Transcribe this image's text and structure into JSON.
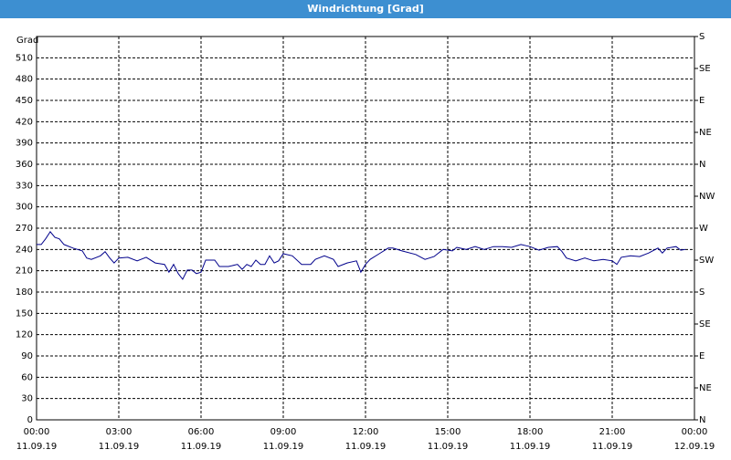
{
  "chart_data": {
    "type": "line",
    "title": "Windrichtung [Grad]",
    "ylabel": "Grad",
    "x": [
      0,
      0.17,
      0.33,
      0.5,
      0.67,
      0.83,
      1,
      1.33,
      1.67,
      1.83,
      2,
      2.33,
      2.5,
      2.67,
      2.83,
      3,
      3.33,
      3.67,
      4,
      4.33,
      4.67,
      4.83,
      5,
      5.17,
      5.33,
      5.5,
      5.67,
      5.83,
      6,
      6.17,
      6.5,
      6.67,
      7,
      7.33,
      7.5,
      7.67,
      7.83,
      8,
      8.17,
      8.33,
      8.5,
      8.67,
      8.83,
      9,
      9.33,
      9.67,
      10,
      10.17,
      10.5,
      10.83,
      11,
      11.33,
      11.67,
      11.83,
      12,
      12.17,
      12.5,
      12.83,
      13,
      13.33,
      13.83,
      14.17,
      14.5,
      14.83,
      15.17,
      15.33,
      15.67,
      16,
      16.33,
      16.67,
      17,
      17.33,
      17.67,
      18,
      18.33,
      18.67,
      19,
      19.17,
      19.33,
      19.67,
      20,
      20.33,
      20.67,
      21,
      21.17,
      21.33,
      21.67,
      22,
      22.33,
      22.67,
      22.83,
      23,
      23.33,
      23.5,
      23.67
    ],
    "series": [
      {
        "color": "#00008b",
        "values": [
          247,
          247,
          255,
          265,
          257,
          255,
          247,
          242,
          238,
          228,
          226,
          231,
          237,
          228,
          221,
          228,
          229,
          224,
          229,
          221,
          219,
          208,
          219,
          206,
          198,
          211,
          211,
          206,
          208,
          225,
          225,
          216,
          216,
          219,
          212,
          219,
          216,
          225,
          219,
          219,
          231,
          221,
          224,
          234,
          231,
          219,
          219,
          226,
          231,
          226,
          216,
          221,
          224,
          208,
          219,
          226,
          234,
          242,
          242,
          238,
          233,
          226,
          230,
          240,
          238,
          243,
          240,
          244,
          240,
          244,
          244,
          243,
          247,
          244,
          239,
          243,
          244,
          237,
          228,
          224,
          228,
          224,
          226,
          224,
          219,
          229,
          231,
          230,
          235,
          242,
          235,
          242,
          244,
          239,
          240
        ]
      }
    ],
    "xlim": [
      0,
      24
    ],
    "xticks": [
      {
        "value": 0,
        "label": "00:00"
      },
      {
        "value": 3,
        "label": "03:00"
      },
      {
        "value": 6,
        "label": "06:00"
      },
      {
        "value": 9,
        "label": "09:00"
      },
      {
        "value": 12,
        "label": "12:00"
      },
      {
        "value": 15,
        "label": "15:00"
      },
      {
        "value": 18,
        "label": "18:00"
      },
      {
        "value": 21,
        "label": "21:00"
      },
      {
        "value": 24,
        "label": "00:00"
      }
    ],
    "xtick_dates": [
      "11.09.19",
      "11.09.19",
      "11.09.19",
      "11.09.19",
      "11.09.19",
      "11.09.19",
      "11.09.19",
      "11.09.19",
      "12.09.19"
    ],
    "ylim": [
      0,
      540
    ],
    "yticks": [
      0,
      30,
      60,
      90,
      120,
      150,
      180,
      210,
      240,
      270,
      300,
      330,
      360,
      390,
      420,
      450,
      480,
      510
    ],
    "y2lim": [
      0,
      540
    ],
    "y2ticks": [
      {
        "value": 0,
        "label": "N"
      },
      {
        "value": 45,
        "label": "NE"
      },
      {
        "value": 90,
        "label": "E"
      },
      {
        "value": 135,
        "label": "SE"
      },
      {
        "value": 180,
        "label": "S"
      },
      {
        "value": 225,
        "label": "SW"
      },
      {
        "value": 270,
        "label": "W"
      },
      {
        "value": 315,
        "label": "NW"
      },
      {
        "value": 360,
        "label": "N"
      },
      {
        "value": 405,
        "label": "NE"
      },
      {
        "value": 450,
        "label": "E"
      },
      {
        "value": 495,
        "label": "SE"
      },
      {
        "value": 540,
        "label": "S"
      }
    ],
    "grid": true
  }
}
